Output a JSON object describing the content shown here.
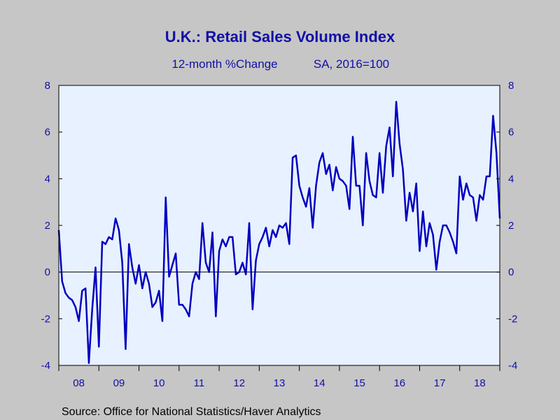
{
  "colors": {
    "background": "#c6c6c6",
    "plot_background": "#e8f1ff",
    "line": "#0000c0",
    "text": "#1010a8",
    "axis": "#000000"
  },
  "source_text": "Source:  Office for National Statistics/Haver Analytics",
  "chart_data": {
    "type": "line",
    "title": "U.K.: Retail Sales Volume Index",
    "subtitle_left": "12-month %Change",
    "subtitle_right": "SA, 2016=100",
    "xlabel": "",
    "ylabel": "",
    "ylim": [
      -4,
      8
    ],
    "yticks": [
      8,
      6,
      4,
      2,
      0,
      -2,
      -4
    ],
    "y_axis_both_sides": true,
    "zero_line": true,
    "grid": false,
    "legend": "none",
    "x_start_month": "2008-01",
    "x_end_month": "2019-01",
    "x_tick_labels": [
      "08",
      "09",
      "10",
      "11",
      "12",
      "13",
      "14",
      "15",
      "16",
      "17",
      "18"
    ],
    "series": [
      {
        "frequency": "monthly",
        "start": "2008-01",
        "values": [
          1.8,
          -0.4,
          -0.9,
          -1.1,
          -1.2,
          -1.5,
          -2.1,
          -0.8,
          -0.7,
          -3.9,
          -1.6,
          0.2,
          -3.2,
          1.3,
          1.2,
          1.5,
          1.4,
          2.3,
          1.8,
          0.4,
          -3.3,
          1.2,
          0.2,
          -0.5,
          0.3,
          -0.7,
          0.0,
          -0.5,
          -1.5,
          -1.3,
          -0.8,
          -2.1,
          3.2,
          -0.2,
          0.3,
          0.8,
          -1.4,
          -1.4,
          -1.6,
          -1.9,
          -0.5,
          0.0,
          -0.3,
          2.1,
          0.4,
          0.0,
          1.7,
          -1.9,
          0.9,
          1.4,
          1.1,
          1.5,
          1.5,
          -0.1,
          0.0,
          0.4,
          -0.1,
          2.1,
          -1.6,
          0.5,
          1.2,
          1.5,
          1.9,
          1.1,
          1.8,
          1.5,
          2.0,
          1.9,
          2.1,
          1.2,
          4.9,
          5.0,
          3.7,
          3.2,
          2.8,
          3.6,
          1.9,
          3.7,
          4.7,
          5.1,
          4.2,
          4.6,
          3.5,
          4.5,
          4.0,
          3.9,
          3.7,
          2.7,
          5.8,
          3.7,
          3.7,
          2.0,
          5.1,
          3.9,
          3.3,
          3.2,
          5.1,
          3.4,
          5.4,
          6.2,
          4.1,
          7.3,
          5.5,
          4.4,
          2.2,
          3.4,
          2.6,
          3.8,
          0.9,
          2.6,
          1.1,
          2.1,
          1.6,
          0.1,
          1.3,
          2.0,
          2.0,
          1.7,
          1.3,
          0.8,
          4.1,
          3.1,
          3.8,
          3.3,
          3.2,
          2.2,
          3.3,
          3.1,
          4.1,
          4.1,
          6.7,
          5.1,
          2.3
        ]
      }
    ]
  }
}
